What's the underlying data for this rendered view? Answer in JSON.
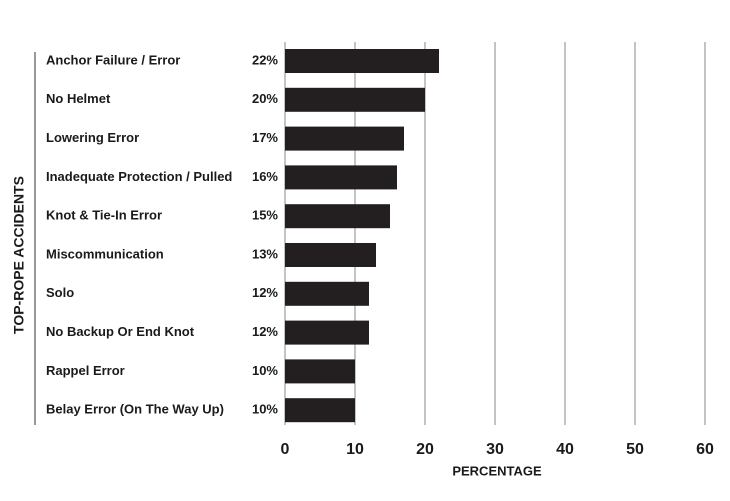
{
  "chart_data": {
    "type": "bar",
    "orientation": "horizontal",
    "y_axis_label": "TOP-ROPE ACCIDENTS",
    "x_axis_label": "PERCENTAGE",
    "categories": [
      "Anchor Failure / Error",
      "No Helmet",
      "Lowering Error",
      "Inadequate Protection / Pulled",
      "Knot & Tie-In Error",
      "Miscommunication",
      "Solo",
      "No Backup Or End Knot",
      "Rappel Error",
      "Belay Error (On The Way Up)"
    ],
    "values": [
      22,
      20,
      17,
      16,
      15,
      13,
      12,
      12,
      10,
      10
    ],
    "value_labels": [
      "22%",
      "20%",
      "17%",
      "16%",
      "15%",
      "13%",
      "12%",
      "12%",
      "10%",
      "10%"
    ],
    "color": "#231f20",
    "xlim": [
      0,
      60
    ],
    "xticks": [
      0,
      10,
      20,
      30,
      40,
      50,
      60
    ],
    "grid": true
  }
}
